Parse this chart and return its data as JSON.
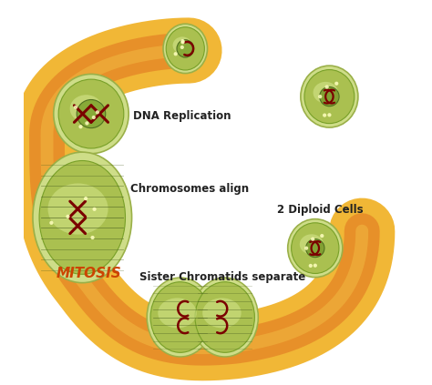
{
  "background": "#ffffff",
  "arrow_outer_color": "#f0b020",
  "arrow_inner_color": "#e07020",
  "mitosis_text_color": "#cc4400",
  "label_color": "#222222",
  "chrom_color": "#7a0000",
  "spindle_color": "#4a6020",
  "labels": {
    "dna_replication": "DNA Replication",
    "chromosomes_align": "Chromosomes align",
    "sister_chromatids": "Sister Chromatids separate",
    "diploid_cells": "2 Diploid Cells",
    "mitosis": "MITOSIS"
  }
}
